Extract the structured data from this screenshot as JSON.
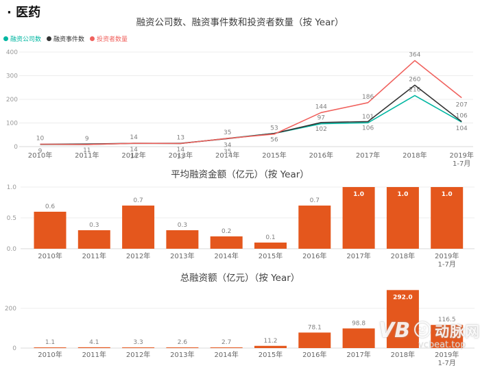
{
  "page": {
    "title": "· 医药"
  },
  "watermark": {
    "logo": "VB",
    "brand": "动脉网",
    "domain": "vcbeat.top"
  },
  "chart_data": [
    {
      "type": "line",
      "title": "融资公司数、融资事件数和投资者数量（按 Year）",
      "legend_position": "top-left",
      "grid": true,
      "categories": [
        "2010年",
        "2011年",
        "2012年",
        "2013年",
        "2014年",
        "2015年",
        "2016年",
        "2017年",
        "2018年",
        "2019年\n1-7月"
      ],
      "ylim": [
        0,
        400
      ],
      "y_ticks": [
        0,
        100,
        200,
        300,
        400
      ],
      "series": [
        {
          "key": "companies",
          "name": "融资公司数",
          "color": "#00b6a1",
          "values": [
            9,
            9,
            14,
            13,
            35,
            56,
            97,
            101,
            216,
            104
          ]
        },
        {
          "key": "events",
          "name": "融资事件数",
          "color": "#333333",
          "values": [
            10,
            11,
            14,
            14,
            34,
            56,
            102,
            106,
            260,
            106
          ]
        },
        {
          "key": "investors",
          "name": "投资者数量",
          "color": "#f0615d",
          "values": [
            10,
            9,
            14,
            13,
            35,
            53,
            144,
            186,
            364,
            207
          ]
        }
      ]
    },
    {
      "type": "bar",
      "title": "平均融资金额（亿元）（按 Year）",
      "categories": [
        "2010年",
        "2011年",
        "2012年",
        "2013年",
        "2014年",
        "2015年",
        "2016年",
        "2017年",
        "2018年",
        "2019年\n1-7月"
      ],
      "ylim": [
        0,
        1.0
      ],
      "y_ticks": [
        "0.0",
        "0.5",
        "1.0"
      ],
      "y_tick_values": [
        0,
        0.5,
        1.0
      ],
      "bar_color": "#e4571d",
      "values": [
        0.6,
        0.3,
        0.7,
        0.3,
        0.2,
        0.1,
        0.7,
        1.0,
        1.0,
        1.0
      ],
      "labels": [
        "0.6",
        "0.3",
        "0.7",
        "0.3",
        "0.2",
        "0.1",
        "0.7",
        "1.0",
        "1.0",
        "1.0"
      ]
    },
    {
      "type": "bar",
      "title": "总融资额（亿元）（按 Year）",
      "categories": [
        "2010年",
        "2011年",
        "2012年",
        "2013年",
        "2014年",
        "2015年",
        "2016年",
        "2017年",
        "2018年",
        "2019年\n1-7月"
      ],
      "ylim": [
        0,
        320
      ],
      "y_ticks": [
        "0",
        "200"
      ],
      "y_tick_values": [
        0,
        200
      ],
      "bar_color": "#e4571d",
      "values": [
        1.1,
        4.1,
        3.3,
        2.6,
        2.7,
        11.2,
        78.1,
        98.8,
        292.0,
        116.5
      ],
      "labels": [
        "1.1",
        "4.1",
        "3.3",
        "2.6",
        "2.7",
        "11.2",
        "78.1",
        "98.8",
        "292.0",
        "116.5"
      ]
    }
  ]
}
